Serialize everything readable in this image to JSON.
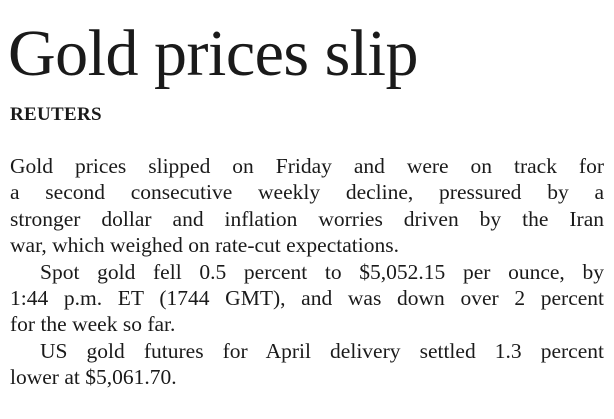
{
  "header": {
    "title": "Gold prices slip",
    "byline": "REUTERS"
  },
  "body": {
    "paragraphs": [
      {
        "lines": [
          "Gold prices slipped on Friday and were on track for",
          "a second consecutive weekly decline, pressured by a",
          "stronger dollar and inflation worries driven by the Iran",
          "war, which weighed on rate-cut expectations."
        ]
      },
      {
        "lines": [
          "Spot gold fell 0.5 percent to $5,052.15 per ounce, by",
          "1:44 p.m. ET (1744 GMT), and was down over 2 percent",
          "for the week so far."
        ]
      },
      {
        "lines": [
          "US gold futures for April delivery settled 1.3 percent",
          "lower at $5,061.70."
        ]
      }
    ]
  }
}
